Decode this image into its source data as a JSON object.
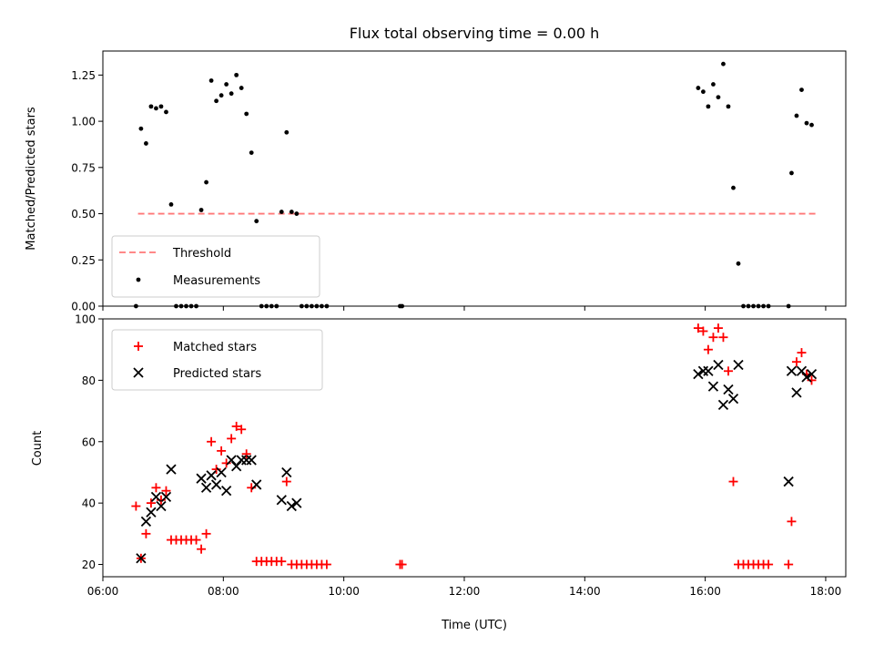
{
  "chart_data": [
    {
      "type": "scatter",
      "title": "Flux total observing time = 0.00 h",
      "xlabel": "",
      "ylabel": "Matched/Predicted stars",
      "ylim": [
        0,
        1.38
      ],
      "yticks": [
        "0.00",
        "0.25",
        "0.50",
        "0.75",
        "1.00",
        "1.25"
      ],
      "legend_position": "lower-left",
      "threshold": {
        "name": "Threshold",
        "value": 0.5,
        "x": [
          "06:35",
          "17:50"
        ],
        "color": "#ff6666"
      },
      "series": [
        {
          "name": "Measurements",
          "color": "#000000",
          "points": [
            [
              "06:33",
              0.0
            ],
            [
              "06:38",
              0.96
            ],
            [
              "06:43",
              0.88
            ],
            [
              "06:48",
              1.08
            ],
            [
              "06:53",
              1.07
            ],
            [
              "06:58",
              1.08
            ],
            [
              "07:03",
              1.05
            ],
            [
              "07:08",
              0.55
            ],
            [
              "07:13",
              0.0
            ],
            [
              "07:18",
              0.0
            ],
            [
              "07:23",
              0.0
            ],
            [
              "07:28",
              0.0
            ],
            [
              "07:33",
              0.0
            ],
            [
              "07:38",
              0.52
            ],
            [
              "07:43",
              0.67
            ],
            [
              "07:48",
              1.22
            ],
            [
              "07:53",
              1.11
            ],
            [
              "07:58",
              1.14
            ],
            [
              "08:03",
              1.2
            ],
            [
              "08:08",
              1.15
            ],
            [
              "08:13",
              1.25
            ],
            [
              "08:18",
              1.18
            ],
            [
              "08:23",
              1.04
            ],
            [
              "08:28",
              0.83
            ],
            [
              "08:33",
              0.46
            ],
            [
              "08:38",
              0.0
            ],
            [
              "08:43",
              0.0
            ],
            [
              "08:48",
              0.0
            ],
            [
              "08:53",
              0.0
            ],
            [
              "08:58",
              0.51
            ],
            [
              "09:03",
              0.94
            ],
            [
              "09:08",
              0.51
            ],
            [
              "09:13",
              0.5
            ],
            [
              "09:18",
              0.0
            ],
            [
              "09:23",
              0.0
            ],
            [
              "09:28",
              0.0
            ],
            [
              "09:33",
              0.0
            ],
            [
              "09:38",
              0.0
            ],
            [
              "09:43",
              0.0
            ],
            [
              "10:56",
              0.0
            ],
            [
              "10:58",
              0.0
            ],
            [
              "15:53",
              1.18
            ],
            [
              "15:58",
              1.16
            ],
            [
              "16:03",
              1.08
            ],
            [
              "16:08",
              1.2
            ],
            [
              "16:13",
              1.13
            ],
            [
              "16:18",
              1.31
            ],
            [
              "16:23",
              1.08
            ],
            [
              "16:28",
              0.64
            ],
            [
              "16:33",
              0.23
            ],
            [
              "16:38",
              0.0
            ],
            [
              "16:43",
              0.0
            ],
            [
              "16:48",
              0.0
            ],
            [
              "16:53",
              0.0
            ],
            [
              "16:58",
              0.0
            ],
            [
              "17:03",
              0.0
            ],
            [
              "17:23",
              0.0
            ],
            [
              "17:26",
              0.72
            ],
            [
              "17:31",
              1.03
            ],
            [
              "17:36",
              1.17
            ],
            [
              "17:41",
              0.99
            ],
            [
              "17:46",
              0.98
            ]
          ]
        }
      ]
    },
    {
      "type": "scatter",
      "title": "",
      "xlabel": "Time (UTC)",
      "ylabel": "Count",
      "xlim": [
        "06:00",
        "18:20"
      ],
      "ylim": [
        16,
        100
      ],
      "xticks": [
        "06:00",
        "08:00",
        "10:00",
        "12:00",
        "14:00",
        "16:00",
        "18:00"
      ],
      "yticks": [
        "20",
        "40",
        "60",
        "80",
        "100"
      ],
      "legend_position": "upper-left",
      "series": [
        {
          "name": "Matched stars",
          "marker": "plus",
          "color": "#ff0000",
          "points": [
            [
              "06:33",
              39
            ],
            [
              "06:38",
              22
            ],
            [
              "06:43",
              30
            ],
            [
              "06:48",
              40
            ],
            [
              "06:53",
              45
            ],
            [
              "06:58",
              41
            ],
            [
              "07:03",
              44
            ],
            [
              "07:08",
              28
            ],
            [
              "07:13",
              28
            ],
            [
              "07:18",
              28
            ],
            [
              "07:23",
              28
            ],
            [
              "07:28",
              28
            ],
            [
              "07:33",
              28
            ],
            [
              "07:38",
              25
            ],
            [
              "07:43",
              30
            ],
            [
              "07:48",
              60
            ],
            [
              "07:53",
              51
            ],
            [
              "07:58",
              57
            ],
            [
              "08:03",
              53
            ],
            [
              "08:08",
              61
            ],
            [
              "08:13",
              65
            ],
            [
              "08:18",
              64
            ],
            [
              "08:23",
              56
            ],
            [
              "08:28",
              45
            ],
            [
              "08:33",
              21
            ],
            [
              "08:38",
              21
            ],
            [
              "08:43",
              21
            ],
            [
              "08:48",
              21
            ],
            [
              "08:53",
              21
            ],
            [
              "08:58",
              21
            ],
            [
              "09:03",
              47
            ],
            [
              "09:08",
              20
            ],
            [
              "09:13",
              20
            ],
            [
              "09:18",
              20
            ],
            [
              "09:23",
              20
            ],
            [
              "09:28",
              20
            ],
            [
              "09:33",
              20
            ],
            [
              "09:38",
              20
            ],
            [
              "09:43",
              20
            ],
            [
              "10:56",
              20
            ],
            [
              "10:58",
              20
            ],
            [
              "15:53",
              97
            ],
            [
              "15:58",
              96
            ],
            [
              "16:03",
              90
            ],
            [
              "16:08",
              94
            ],
            [
              "16:13",
              97
            ],
            [
              "16:18",
              94
            ],
            [
              "16:23",
              83
            ],
            [
              "16:28",
              47
            ],
            [
              "16:33",
              20
            ],
            [
              "16:38",
              20
            ],
            [
              "16:43",
              20
            ],
            [
              "16:48",
              20
            ],
            [
              "16:53",
              20
            ],
            [
              "16:58",
              20
            ],
            [
              "17:03",
              20
            ],
            [
              "17:23",
              20
            ],
            [
              "17:26",
              34
            ],
            [
              "17:31",
              86
            ],
            [
              "17:36",
              89
            ],
            [
              "17:41",
              82
            ],
            [
              "17:46",
              80
            ]
          ]
        },
        {
          "name": "Predicted stars",
          "marker": "x",
          "color": "#000000",
          "points": [
            [
              "06:38",
              22
            ],
            [
              "06:43",
              34
            ],
            [
              "06:48",
              37
            ],
            [
              "06:53",
              42
            ],
            [
              "06:58",
              39
            ],
            [
              "07:03",
              42
            ],
            [
              "07:08",
              51
            ],
            [
              "07:38",
              48
            ],
            [
              "07:43",
              45
            ],
            [
              "07:48",
              49
            ],
            [
              "07:53",
              46
            ],
            [
              "07:58",
              50
            ],
            [
              "08:03",
              44
            ],
            [
              "08:08",
              54
            ],
            [
              "08:13",
              52
            ],
            [
              "08:18",
              54
            ],
            [
              "08:23",
              54
            ],
            [
              "08:28",
              54
            ],
            [
              "08:33",
              46
            ],
            [
              "08:58",
              41
            ],
            [
              "09:03",
              50
            ],
            [
              "09:08",
              39
            ],
            [
              "09:13",
              40
            ],
            [
              "15:53",
              82
            ],
            [
              "15:58",
              83
            ],
            [
              "16:03",
              83
            ],
            [
              "16:08",
              78
            ],
            [
              "16:13",
              85
            ],
            [
              "16:18",
              72
            ],
            [
              "16:23",
              77
            ],
            [
              "16:28",
              74
            ],
            [
              "16:33",
              85
            ],
            [
              "17:23",
              47
            ],
            [
              "17:26",
              83
            ],
            [
              "17:31",
              76
            ],
            [
              "17:36",
              83
            ],
            [
              "17:41",
              81
            ],
            [
              "17:46",
              82
            ]
          ]
        }
      ]
    }
  ]
}
